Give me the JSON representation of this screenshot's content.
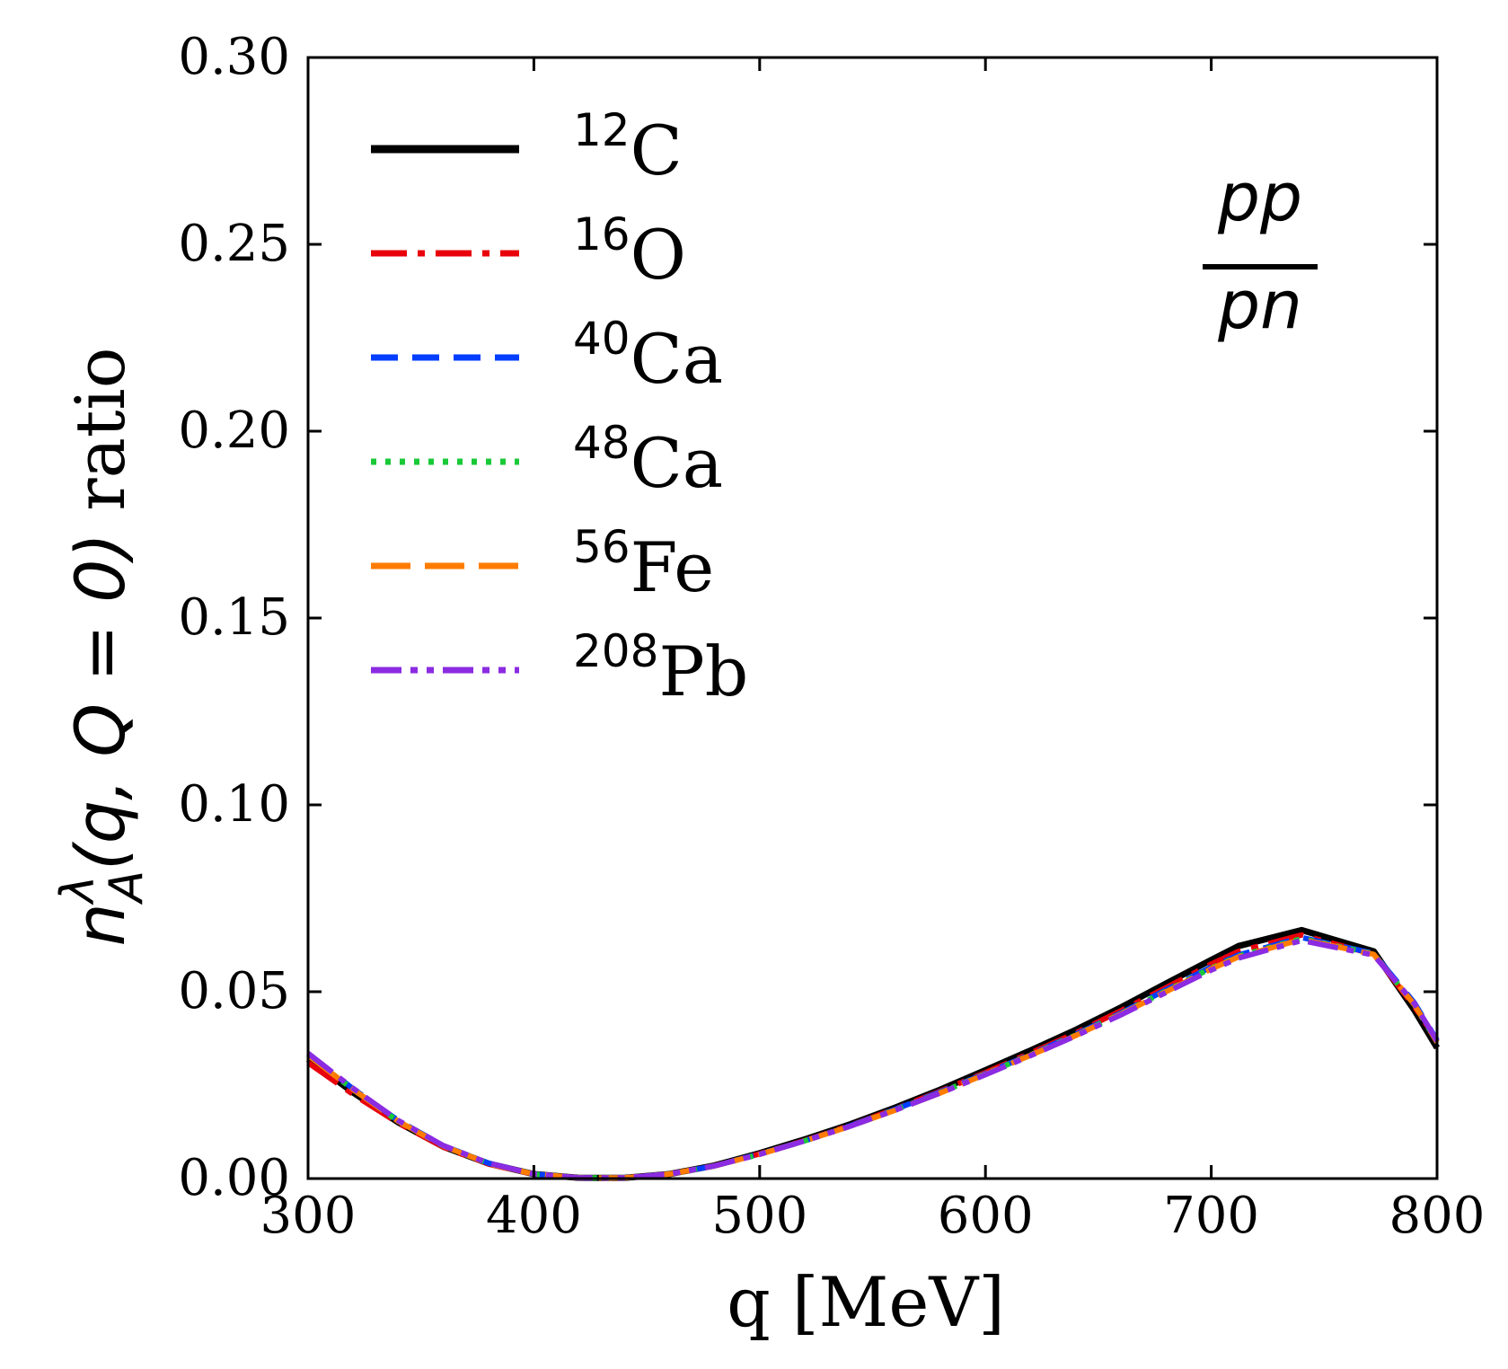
{
  "chart_data": {
    "type": "line",
    "xlabel": "q [MeV]",
    "ylabel": {
      "main": "n",
      "superscript": "λ",
      "subscript": "A",
      "args": "(q, Q = 0)",
      "suffix": " ratio"
    },
    "xlim": [
      300,
      800
    ],
    "ylim": [
      0.0,
      0.3
    ],
    "xticks": [
      300,
      400,
      500,
      600,
      700,
      800
    ],
    "yticks": [
      0.0,
      0.05,
      0.1,
      0.15,
      0.2,
      0.25,
      0.3
    ],
    "xtick_labels": [
      "300",
      "400",
      "500",
      "600",
      "700",
      "800"
    ],
    "ytick_labels": [
      "0.00",
      "0.05",
      "0.10",
      "0.15",
      "0.20",
      "0.25",
      "0.30"
    ],
    "grid": false,
    "legend_position": "top-left",
    "annotation": {
      "numerator": "pp",
      "denominator": "pn"
    },
    "x": [
      300,
      320,
      340,
      360,
      380,
      400,
      420,
      440,
      460,
      480,
      500,
      520,
      540,
      560,
      580,
      600,
      620,
      640,
      660,
      680,
      700,
      712,
      740,
      772,
      790,
      800
    ],
    "series": [
      {
        "name": "C",
        "mass_number": "12",
        "color": "#000000",
        "dash": "solid",
        "values": [
          0.032,
          0.023,
          0.015,
          0.0085,
          0.004,
          0.0012,
          0.0002,
          0.0002,
          0.0012,
          0.0035,
          0.0068,
          0.0105,
          0.0145,
          0.019,
          0.0238,
          0.029,
          0.0343,
          0.0398,
          0.0458,
          0.0522,
          0.0585,
          0.0622,
          0.0665,
          0.0608,
          0.045,
          0.035
        ]
      },
      {
        "name": "O",
        "mass_number": "16",
        "color": "#e8000b",
        "dash": "dashdot",
        "values": [
          0.031,
          0.0225,
          0.0148,
          0.0084,
          0.0039,
          0.0011,
          0.0002,
          0.0002,
          0.0012,
          0.0034,
          0.0066,
          0.0102,
          0.0142,
          0.0186,
          0.0234,
          0.0284,
          0.0336,
          0.039,
          0.0449,
          0.0511,
          0.0574,
          0.0608,
          0.0652,
          0.06,
          0.046,
          0.037
        ]
      },
      {
        "name": "Ca",
        "mass_number": "40",
        "color": "#023eff",
        "dash": "dashed",
        "values": [
          0.0335,
          0.024,
          0.0155,
          0.0088,
          0.0041,
          0.0012,
          0.0002,
          0.0002,
          0.0012,
          0.0034,
          0.0066,
          0.0101,
          0.0141,
          0.0185,
          0.0232,
          0.0281,
          0.0332,
          0.0386,
          0.0443,
          0.0505,
          0.0566,
          0.0598,
          0.0645,
          0.0603,
          0.047,
          0.037
        ]
      },
      {
        "name": "Ca",
        "mass_number": "48",
        "color": "#1ac938",
        "dash": "dotted",
        "values": [
          0.033,
          0.0238,
          0.0153,
          0.0087,
          0.004,
          0.0012,
          0.0002,
          0.0002,
          0.0012,
          0.0034,
          0.0065,
          0.0101,
          0.014,
          0.0184,
          0.023,
          0.028,
          0.0331,
          0.0384,
          0.0441,
          0.0502,
          0.0563,
          0.0595,
          0.0642,
          0.0601,
          0.0465,
          0.0365
        ]
      },
      {
        "name": "Fe",
        "mass_number": "56",
        "color": "#ff7c00",
        "dash": "longdash",
        "values": [
          0.033,
          0.0238,
          0.0153,
          0.0087,
          0.004,
          0.0012,
          0.0002,
          0.0002,
          0.0012,
          0.0034,
          0.0065,
          0.0101,
          0.014,
          0.0183,
          0.0229,
          0.0279,
          0.033,
          0.0383,
          0.044,
          0.05,
          0.0561,
          0.0593,
          0.064,
          0.06,
          0.0465,
          0.0365
        ]
      },
      {
        "name": "Pb",
        "mass_number": "208",
        "color": "#8b2be2",
        "dash": "dashdotdot",
        "values": [
          0.0335,
          0.0241,
          0.0155,
          0.0088,
          0.0041,
          0.0012,
          0.0002,
          0.0002,
          0.0012,
          0.0034,
          0.0065,
          0.0101,
          0.014,
          0.0183,
          0.0229,
          0.0278,
          0.0329,
          0.0382,
          0.0438,
          0.0498,
          0.0558,
          0.059,
          0.0637,
          0.0598,
          0.0468,
          0.0368
        ]
      }
    ]
  }
}
